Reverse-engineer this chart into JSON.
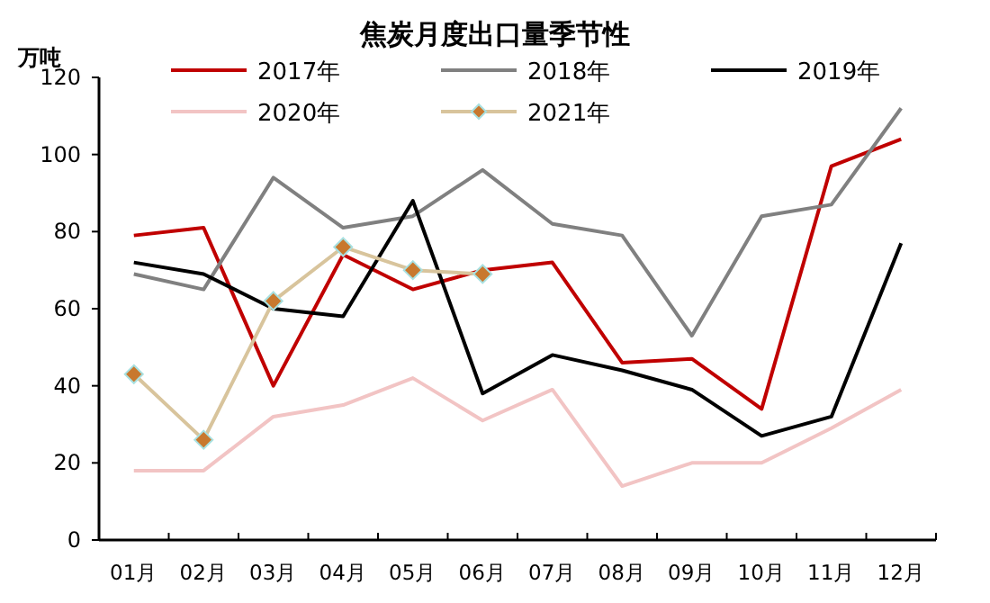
{
  "chart_data": {
    "type": "line",
    "title": "焦炭月度出口量季节性",
    "ylabel": "万吨",
    "categories": [
      "01月",
      "02月",
      "03月",
      "04月",
      "05月",
      "06月",
      "07月",
      "08月",
      "09月",
      "10月",
      "11月",
      "12月"
    ],
    "series": [
      {
        "name": "2017年",
        "color": "#c00000",
        "values": [
          79,
          81,
          40,
          74,
          65,
          70,
          72,
          46,
          47,
          34,
          97,
          104
        ]
      },
      {
        "name": "2018年",
        "color": "#808080",
        "values": [
          69,
          65,
          94,
          81,
          84,
          96,
          82,
          79,
          53,
          84,
          87,
          112
        ]
      },
      {
        "name": "2019年",
        "color": "#000000",
        "values": [
          72,
          69,
          60,
          58,
          88,
          38,
          48,
          44,
          39,
          27,
          32,
          77
        ]
      },
      {
        "name": "2020年",
        "color": "#f2c4c4",
        "values": [
          18,
          18,
          32,
          35,
          42,
          31,
          39,
          14,
          20,
          20,
          29,
          39
        ]
      },
      {
        "name": "2021年",
        "color": "#d8c49c",
        "marker": "diamond",
        "values": [
          43,
          26,
          62,
          76,
          70,
          69,
          null,
          null,
          null,
          null,
          null,
          null
        ]
      }
    ],
    "ylim": [
      0,
      120
    ],
    "yticks": [
      0,
      20,
      40,
      60,
      80,
      100,
      120
    ],
    "grid": false,
    "legend": "top",
    "line_style": "solid"
  }
}
